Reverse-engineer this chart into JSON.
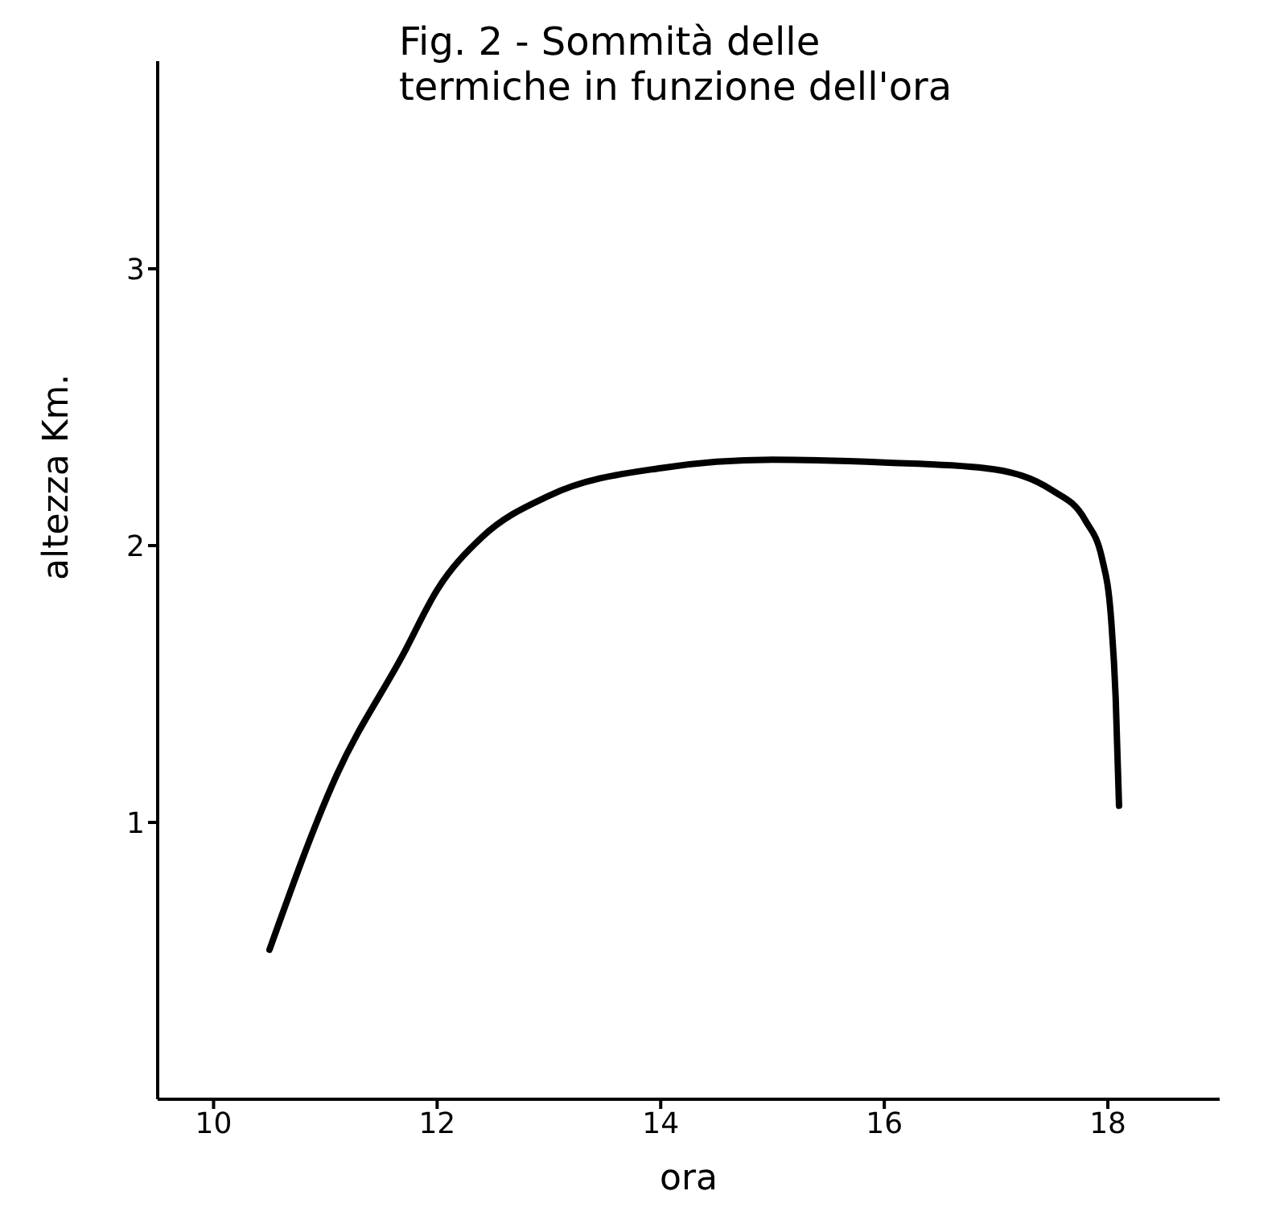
{
  "chart_data": {
    "type": "line",
    "title": "Fig. 2 - Sommità delle termiche in funzione dell'ora",
    "xlabel": "ora",
    "ylabel": "altezza Km.",
    "x": [
      10.5,
      11.1,
      11.7,
      12,
      12.4,
      13,
      14,
      15,
      16,
      16.9,
      17.5,
      17.8,
      17.95,
      18.03,
      18.07,
      18.1
    ],
    "series": [
      {
        "color": "#000000",
        "values": [
          0.54,
          1.17,
          1.61,
          1.84,
          2.03,
          2.18,
          2.28,
          2.31,
          2.3,
          2.28,
          2.2,
          2.09,
          1.95,
          1.73,
          1.45,
          1.06
        ]
      }
    ],
    "xlim": [
      9.5,
      19
    ],
    "xticks": [
      10,
      12,
      14,
      16,
      18
    ],
    "ylim": [
      0,
      3.75
    ],
    "yticks": [
      1,
      2,
      3
    ],
    "grid": false,
    "legend": false,
    "marker": "none",
    "line_style": "solid"
  }
}
